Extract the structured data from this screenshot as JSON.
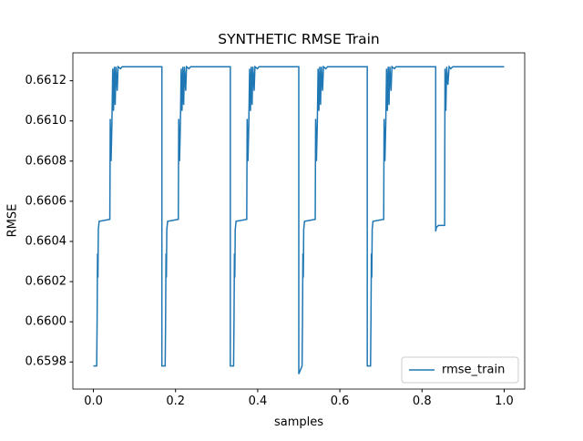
{
  "chart_data": {
    "type": "line",
    "title": "SYNTHETIC RMSE Train",
    "xlabel": "samples",
    "ylabel": "RMSE",
    "x": [
      0,
      0.008,
      0.009,
      0.01,
      0.011,
      0.012,
      0.014,
      0.04,
      0.041,
      0.043,
      0.045,
      0.047,
      0.049,
      0.051,
      0.053,
      0.055,
      0.058,
      0.06,
      0.066,
      0.07,
      0.1667,
      0.1667,
      0.1747,
      0.1757,
      0.1767,
      0.1777,
      0.1787,
      0.1807,
      0.2067,
      0.2077,
      0.2097,
      0.2117,
      0.2137,
      0.2157,
      0.2177,
      0.2197,
      0.2217,
      0.2247,
      0.2267,
      0.2327,
      0.2367,
      0.3333,
      0.3333,
      0.3413,
      0.3423,
      0.3433,
      0.3443,
      0.3453,
      0.3473,
      0.3733,
      0.3743,
      0.3763,
      0.3783,
      0.3803,
      0.3823,
      0.3843,
      0.3863,
      0.3883,
      0.3913,
      0.3933,
      0.3993,
      0.4033,
      0.5,
      0.5,
      0.508,
      0.509,
      0.51,
      0.511,
      0.512,
      0.514,
      0.54,
      0.541,
      0.543,
      0.545,
      0.547,
      0.549,
      0.551,
      0.553,
      0.555,
      0.558,
      0.56,
      0.566,
      0.57,
      0.6667,
      0.6667,
      0.6747,
      0.6757,
      0.6767,
      0.6777,
      0.6787,
      0.6807,
      0.7067,
      0.7077,
      0.7097,
      0.7117,
      0.7137,
      0.7157,
      0.7177,
      0.7197,
      0.7217,
      0.7247,
      0.7267,
      0.7327,
      0.7367,
      0.8333,
      0.8333,
      0.835,
      0.84,
      0.855,
      0.856,
      0.858,
      0.86,
      0.863,
      0.866,
      0.87,
      0.875,
      1.0
    ],
    "series": [
      {
        "name": "rmse_train",
        "color": "#1f77b4",
        "values": [
          0.65978,
          0.65978,
          0.66,
          0.66034,
          0.66022,
          0.66046,
          0.6605,
          0.66051,
          0.66101,
          0.6608,
          0.66098,
          0.66126,
          0.66105,
          0.66127,
          0.66108,
          0.66127,
          0.66115,
          0.66127,
          0.66126,
          0.66127,
          0.66127,
          0.65978,
          0.65978,
          0.66,
          0.66034,
          0.66022,
          0.66046,
          0.6605,
          0.66051,
          0.66101,
          0.6608,
          0.66098,
          0.66126,
          0.66105,
          0.66127,
          0.66108,
          0.66127,
          0.66115,
          0.66127,
          0.66126,
          0.66127,
          0.66127,
          0.65978,
          0.65978,
          0.66,
          0.66034,
          0.66022,
          0.66046,
          0.6605,
          0.66051,
          0.66101,
          0.6608,
          0.66098,
          0.66126,
          0.66105,
          0.66127,
          0.66108,
          0.66127,
          0.66115,
          0.66127,
          0.66126,
          0.66127,
          0.66127,
          0.65974,
          0.65978,
          0.66,
          0.66034,
          0.66022,
          0.66046,
          0.6605,
          0.66051,
          0.66101,
          0.6608,
          0.66098,
          0.66126,
          0.66105,
          0.66127,
          0.66108,
          0.66127,
          0.66115,
          0.66127,
          0.66126,
          0.66127,
          0.66127,
          0.65978,
          0.65978,
          0.66,
          0.66034,
          0.66022,
          0.66046,
          0.6605,
          0.66051,
          0.66101,
          0.6608,
          0.66098,
          0.66126,
          0.66105,
          0.66127,
          0.66108,
          0.66127,
          0.66115,
          0.66127,
          0.66126,
          0.66127,
          0.66127,
          0.66045,
          0.66047,
          0.66048,
          0.66048,
          0.66126,
          0.66105,
          0.66127,
          0.66118,
          0.66127,
          0.66126,
          0.66127,
          0.66127
        ]
      }
    ],
    "xlim": [
      -0.05,
      1.05
    ],
    "ylim": [
      0.659665,
      0.661339
    ],
    "xticks": [
      {
        "value": 0,
        "label": "0.0"
      },
      0.2,
      0.4,
      0.6,
      0.8,
      {
        "value": 1,
        "label": "1.0"
      }
    ],
    "yticks": [
      0.6598,
      {
        "value": 0.66,
        "label": "0.6600"
      },
      0.6602,
      0.6604,
      0.6606,
      0.6608,
      {
        "value": 0.661,
        "label": "0.6610"
      },
      0.6612
    ],
    "grid": false,
    "legend": "lower right"
  }
}
